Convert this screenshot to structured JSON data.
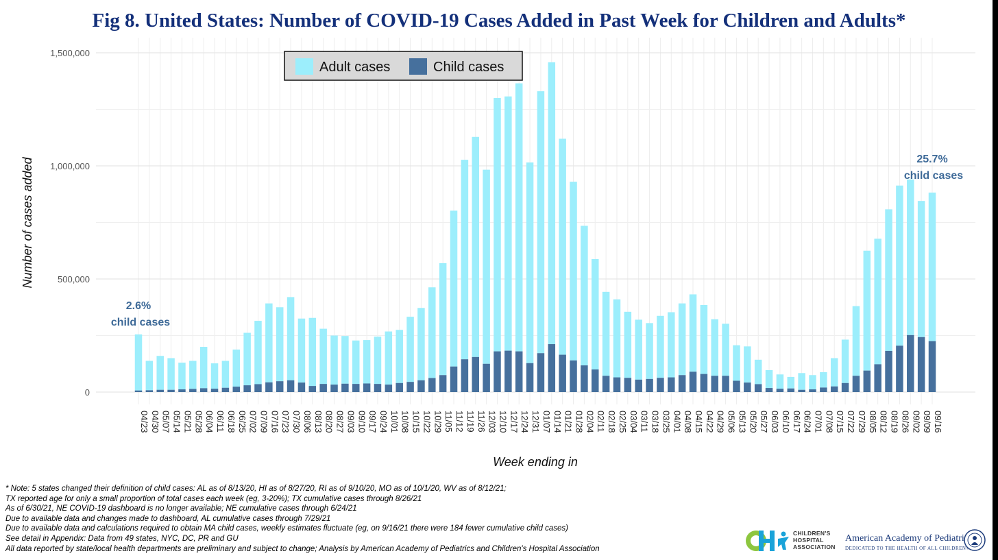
{
  "title": "Fig 8. United States: Number of COVID-19 Cases Added in Past Week for Children and Adults*",
  "chart_data": {
    "type": "bar",
    "stacked": true,
    "xlabel": "Week ending in",
    "ylabel": "Number of cases added",
    "ylim": [
      0,
      1500000
    ],
    "yticks": [
      "0",
      "500,000",
      "1,000,000",
      "1,500,000"
    ],
    "ytick_values": [
      0,
      500000,
      1000000,
      1500000
    ],
    "grid": true,
    "legend_position": "top-left",
    "categories": [
      "04/23",
      "04/30",
      "05/07",
      "05/14",
      "05/21",
      "05/28",
      "06/04",
      "06/11",
      "06/18",
      "06/25",
      "07/02",
      "07/09",
      "07/16",
      "07/23",
      "07/30",
      "08/06",
      "08/13",
      "08/20",
      "08/27",
      "09/03",
      "09/10",
      "09/17",
      "09/24",
      "10/01",
      "10/08",
      "10/15",
      "10/22",
      "10/29",
      "11/05",
      "11/12",
      "11/19",
      "11/26",
      "12/03",
      "12/10",
      "12/17",
      "12/24",
      "12/31",
      "01/07",
      "01/14",
      "01/21",
      "01/28",
      "02/04",
      "02/11",
      "02/18",
      "02/25",
      "03/04",
      "03/11",
      "03/18",
      "03/25",
      "04/01",
      "04/08",
      "04/15",
      "04/22",
      "04/29",
      "05/06",
      "05/13",
      "05/20",
      "05/27",
      "06/03",
      "06/10",
      "06/17",
      "06/24",
      "07/01",
      "07/08",
      "07/15",
      "07/22",
      "07/29",
      "08/05",
      "08/12",
      "08/19",
      "08/26",
      "09/02",
      "09/09",
      "09/16"
    ],
    "tick_labels": [
      "04/23",
      "04/30",
      "05/07",
      "05/14",
      "05/21",
      "05/28",
      "06/04",
      "06/11",
      "06/18",
      "06/25",
      "07/02",
      "07/09",
      "07/16",
      "07/23",
      "07/30",
      "08/06",
      "08/13",
      "08/20",
      "08/27",
      "09/03",
      "09/10",
      "09/17",
      "09/24",
      "10/01",
      "10/08",
      "10/15",
      "10/22",
      "10/29",
      "11/05",
      "11/12",
      "11/19",
      "11/26",
      "12/03",
      "12/10",
      "12/17",
      "12/24",
      "12/31",
      "01/07",
      "01/14",
      "01/21",
      "01/28",
      "02/04",
      "02/11",
      "02/18",
      "02/25",
      "03/04",
      "03/11",
      "03/18",
      "03/25",
      "04/01",
      "04/08",
      "04/15",
      "04/22",
      "04/29",
      "05/06",
      "05/13",
      "05/20",
      "05/27",
      "06/03",
      "06/10",
      "06/17",
      "06/24",
      "07/01",
      "07/08",
      "07/15",
      "07/22",
      "07/29",
      "08/05",
      "08/12",
      "08/19",
      "08/26",
      "09/02",
      "09/09",
      "09/16"
    ],
    "series": [
      {
        "name": "Adult cases",
        "color": "#9ceefc",
        "total_values": [
          255000,
          138000,
          160000,
          150000,
          130000,
          138000,
          200000,
          127000,
          138000,
          188000,
          262000,
          315000,
          392000,
          375000,
          420000,
          325000,
          328000,
          280000,
          250000,
          248000,
          228000,
          230000,
          245000,
          268000,
          275000,
          333000,
          372000,
          463000,
          570000,
          802000,
          1027000,
          1128000,
          983000,
          1300000,
          1307000,
          1365000,
          1015000,
          1330000,
          1458000,
          1120000,
          930000,
          735000,
          588000,
          443000,
          410000,
          355000,
          320000,
          305000,
          337000,
          353000,
          392000,
          432000,
          385000,
          322000,
          302000,
          207000,
          202000,
          143000,
          97000,
          78000,
          67000,
          84000,
          75000,
          88000,
          150000,
          232000,
          380000,
          625000,
          678000,
          808000,
          913000,
          940000,
          845000,
          882000
        ]
      },
      {
        "name": "Child cases",
        "color": "#46709d",
        "values": [
          7000,
          8000,
          10000,
          10000,
          12000,
          14000,
          17000,
          15000,
          19000,
          24000,
          30000,
          35000,
          43000,
          48000,
          52000,
          42000,
          27000,
          36000,
          33000,
          37000,
          36000,
          38000,
          36000,
          33000,
          40000,
          45000,
          52000,
          62000,
          75000,
          113000,
          145000,
          155000,
          125000,
          180000,
          183000,
          180000,
          128000,
          172000,
          212000,
          165000,
          140000,
          118000,
          100000,
          72000,
          65000,
          63000,
          55000,
          58000,
          63000,
          65000,
          75000,
          90000,
          80000,
          72000,
          72000,
          50000,
          42000,
          35000,
          18000,
          15000,
          16000,
          10000,
          12000,
          20000,
          25000,
          40000,
          72000,
          95000,
          123000,
          182000,
          205000,
          252000,
          243000,
          225000
        ]
      }
    ],
    "annotations": [
      {
        "text": "2.6%",
        "sub": "child cases",
        "at": "04/23"
      },
      {
        "text": "25.7%",
        "sub": "child cases",
        "at": "09/16"
      }
    ]
  },
  "notes": [
    "* Note: 5 states changed their definition of child cases: AL as of 8/13/20, HI as of 8/27/20, RI as of 9/10/20, MO as of 10/1/20, WV as of 8/12/21;",
    "TX reported age for only a small proportion of total cases each week (eg, 3-20%); TX cumulative cases through 8/26/21",
    "As of 6/30/21, NE COVID-19 dashboard is no longer available; NE cumulative cases through 6/24/21",
    "Due to available data and changes made to dashboard, AL cumulative cases through 7/29/21",
    "Due to available data and calculations required to obtain MA child cases, weekly estimates fluctuate (eg, on 9/16/21 there were 184 fewer cumulative child cases)",
    "See detail in Appendix: Data from 49 states, NYC, DC, PR and GU",
    "All data reported by state/local health departments are preliminary and subject to change; Analysis by American Academy of Pediatrics and Children's Hospital Association"
  ],
  "logos": {
    "cha": "CHILDREN'S HOSPITAL ASSOCIATION",
    "aap_name": "American Academy of Pediatrics",
    "aap_tagline": "DEDICATED TO THE HEALTH OF ALL CHILDREN®"
  }
}
